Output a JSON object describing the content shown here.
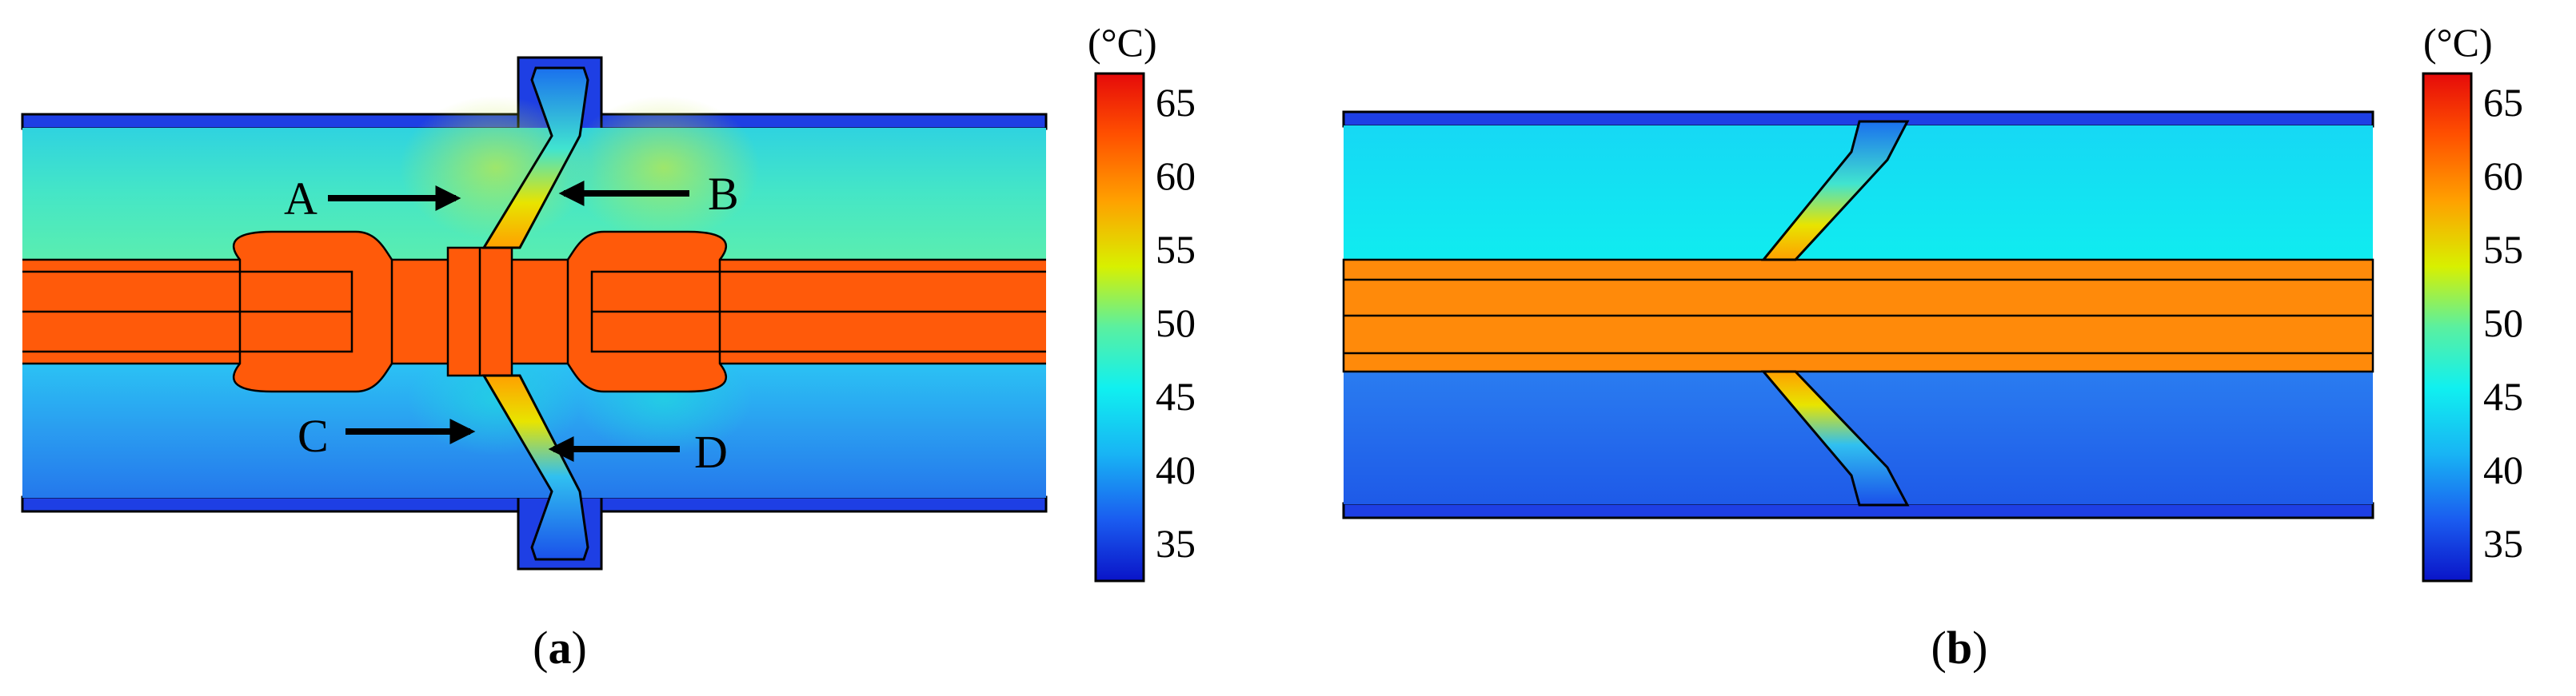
{
  "panel_a": {
    "caption_open": "(",
    "caption_letter": "a",
    "caption_close": ")",
    "annotations": [
      "A",
      "B",
      "C",
      "D"
    ],
    "colorbar": {
      "unit": "(°C)",
      "ticks": [
        "65",
        "60",
        "55",
        "50",
        "45",
        "40",
        "35"
      ]
    }
  },
  "panel_b": {
    "caption_open": "(",
    "caption_letter": "b",
    "caption_close": ")",
    "colorbar": {
      "unit": "(°C)",
      "ticks": [
        "65",
        "60",
        "55",
        "50",
        "45",
        "40",
        "35"
      ]
    }
  },
  "colors": {
    "hot_conductor": "#ff5a0a",
    "hot_conductor_b": "#ff8a0a",
    "upper_insulation_a": "#47e7c4",
    "lower_insulation_a": "#27a9f2",
    "upper_insulation_b": "#14e6f4",
    "lower_insulation_b": "#2270ee",
    "sheath": "#1e3fe4",
    "cone_gradient_top": "#f6c400",
    "colormap": [
      "#0a14c8",
      "#1a5cf0",
      "#18b4f4",
      "#10f0f0",
      "#5af0a0",
      "#d8f000",
      "#ffa000",
      "#ff5000",
      "#e60a0a"
    ]
  }
}
